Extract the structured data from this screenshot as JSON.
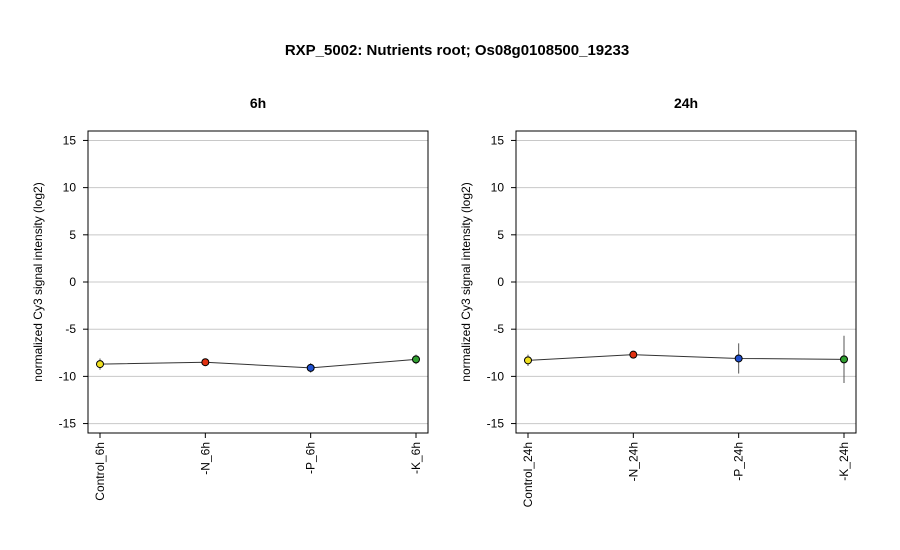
{
  "title": "RXP_5002: Nutrients root; Os08g0108500_19233",
  "chart_data": [
    {
      "type": "line",
      "title": "6h",
      "ylabel": "normalized Cy3 signal intensity (log2)",
      "ylim": [
        -16,
        16
      ],
      "yticks": [
        15,
        10,
        5,
        0,
        -5,
        -10,
        -15
      ],
      "grid": true,
      "categories": [
        "Control_6h",
        "-N_6h",
        "-P_6h",
        "-K_6h"
      ],
      "values": [
        -8.7,
        -8.5,
        -9.1,
        -8.2
      ],
      "errors": [
        0.6,
        0.2,
        0.5,
        0.5
      ],
      "point_colors": [
        "#f0e020",
        "#e03010",
        "#2050d0",
        "#30a030"
      ]
    },
    {
      "type": "line",
      "title": "24h",
      "ylabel": "normalized Cy3 signal intensity (log2)",
      "ylim": [
        -16,
        16
      ],
      "yticks": [
        15,
        10,
        5,
        0,
        -5,
        -10,
        -15
      ],
      "grid": true,
      "categories": [
        "Control_24h",
        "-N_24h",
        "-P_24h",
        "-K_24h"
      ],
      "values": [
        -8.3,
        -7.7,
        -8.1,
        -8.2
      ],
      "errors": [
        0.6,
        0.2,
        1.6,
        2.5
      ],
      "point_colors": [
        "#f0e020",
        "#e03010",
        "#2050d0",
        "#30a030"
      ]
    }
  ]
}
